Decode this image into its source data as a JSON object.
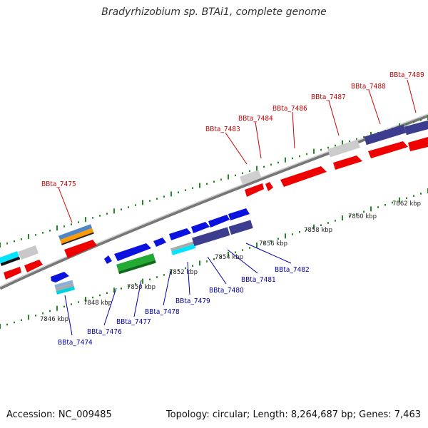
{
  "title": "Bradyrhizobium sp. BTAi1, complete genome",
  "footer": {
    "accession": "Accession: NC_009485",
    "summary": "Topology: circular; Length: 8,264,687 bp; Genes: 7,463"
  },
  "colors": {
    "forward_label": "#cc0000",
    "reverse_label": "#0000aa",
    "backbone": "#888888",
    "tick": "#228822"
  },
  "scale_labels": [
    "7846 kbp",
    "7848 kbp",
    "7850 kbp",
    "7852 kbp",
    "7854 kbp",
    "7856 kbp",
    "7858 kbp",
    "7860 kbp",
    "7862 kbp"
  ],
  "forward_genes": [
    "BBta_7475",
    "BBta_7483",
    "BBta_7484",
    "BBta_7486",
    "BBta_7487",
    "BBta_7488",
    "BBta_7489"
  ],
  "reverse_genes": [
    "BBta_7474",
    "BBta_7476",
    "BBta_7477",
    "BBta_7478",
    "BBta_7479",
    "BBta_7480",
    "BBta_7481",
    "BBta_7482"
  ]
}
